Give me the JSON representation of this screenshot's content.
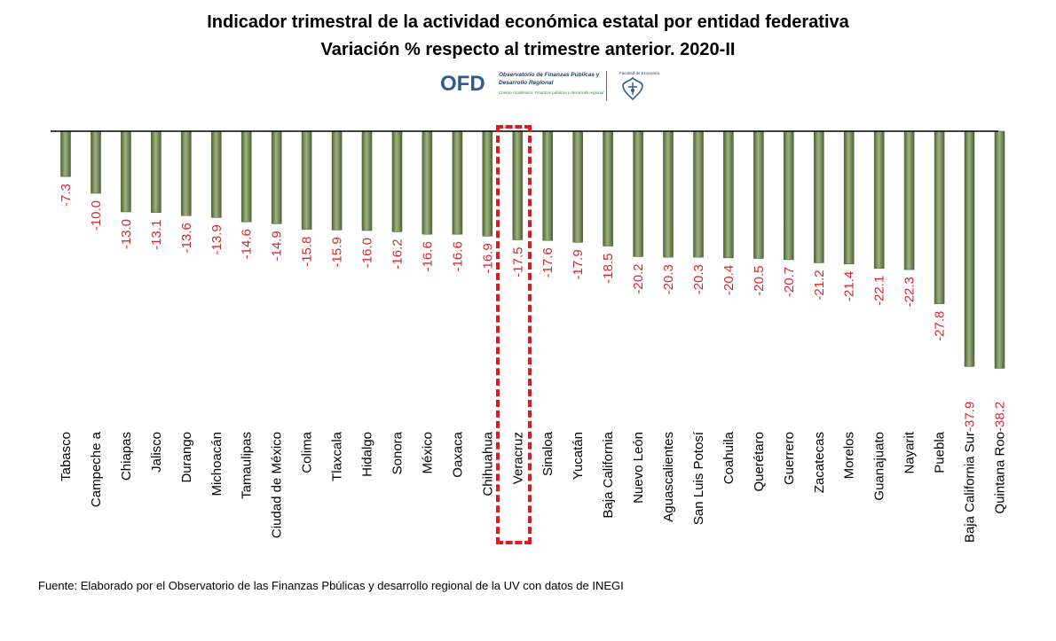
{
  "title_line1": "Indicador trimestral de la actividad económica estatal por entidad federativa",
  "title_line2": "Variación % respecto al  trimestre anterior. 2020-II",
  "logo": {
    "acronym": "OFD",
    "name_line1": "Observatorio de Finanzas Públicas y",
    "name_line2": "Desarrollo Regional",
    "group_line": "Cuerpo Académico: Finanzas públicas y desarrollo regional",
    "faculty": "Facultad de Economía",
    "crest_icon": "university-crest-icon"
  },
  "source": "Fuente: Elaborado por el Observatorio de las Finanzas Pbúlicas y desarrollo regional de la UV con datos de INEGI",
  "colors": {
    "bar_fill": "#8aa06a",
    "bar_dark": "#4f6438",
    "label_red": "#d9262b",
    "highlight_red": "#e0191e"
  },
  "chart_data": {
    "type": "bar",
    "categories": [
      "Tabasco",
      "Campeche a",
      "Chiapas",
      "Jalisco",
      "Durango",
      "Michoacán",
      "Tamaulipas",
      "Ciudad de México",
      "Colima",
      "Tlaxcala",
      "Hidalgo",
      "Sonora",
      "México",
      "Oaxaca",
      "Chihuahua",
      "Veracruz",
      "Sinaloa",
      "Yucatán",
      "Baja California",
      "Nuevo León",
      "Aguascalientes",
      "San Luis Potosí",
      "Coahuila",
      "Querétaro",
      "Guerrero",
      "Zacatecas",
      "Morelos",
      "Guanajuato",
      "Nayarit",
      "Puebla",
      "Baja California Sur",
      "Quintana Roo"
    ],
    "value_labels": [
      "-7.3",
      "-10.0",
      "-13.0",
      "-13.1",
      "-13.6",
      "-13.9",
      "-14.6",
      "-14.9",
      "-15.8",
      "-15.9",
      "-16.0",
      "-16.2",
      "-16.6",
      "-16.6",
      "-16.9",
      "-17.5",
      "-17.6",
      "-17.9",
      "-18.5",
      "-20.2",
      "-20.3",
      "-20.3",
      "-20.4",
      "-20.5",
      "-20.7",
      "-21.2",
      "-21.4",
      "-22.1",
      "-22.3",
      "-27.8",
      "-37.9",
      "-38.2"
    ],
    "values": [
      -7.3,
      -10.0,
      -13.0,
      -13.1,
      -13.6,
      -13.9,
      -14.6,
      -14.9,
      -15.8,
      -15.9,
      -16.0,
      -16.2,
      -16.6,
      -16.6,
      -16.9,
      -17.5,
      -17.6,
      -17.9,
      -18.5,
      -20.2,
      -20.3,
      -20.3,
      -20.4,
      -20.5,
      -20.7,
      -21.2,
      -21.4,
      -22.1,
      -22.3,
      -27.8,
      -37.9,
      -38.2
    ],
    "highlight": "Veracruz",
    "ylim": [
      -40,
      0
    ],
    "grid": false,
    "legend": "none"
  }
}
